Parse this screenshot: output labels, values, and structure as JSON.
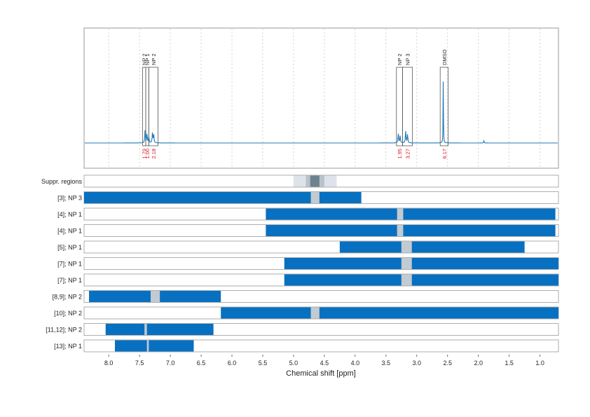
{
  "chart_data": {
    "type": "nmr-spectrum-with-suppression-regions",
    "xlabel": "Chemical shift [ppm]",
    "xlim": [
      8.4,
      0.7
    ],
    "x_ticks": [
      8.0,
      7.5,
      7.0,
      6.5,
      6.0,
      5.5,
      5.0,
      4.5,
      4.0,
      3.5,
      3.0,
      2.5,
      2.0,
      1.5,
      1.0
    ],
    "x_tick_labels": [
      "8.0",
      "7.5",
      "7.0",
      "6.5",
      "6.0",
      "5.5",
      "5.0",
      "4.5",
      "4.0",
      "3.5",
      "3.0",
      "2.5",
      "2.0",
      "1.5",
      "1.0"
    ],
    "spectrum": {
      "color": "#1f77b4",
      "baseline": 0.0,
      "peaks": [
        {
          "ppm": 7.41,
          "height": 0.16,
          "width": 0.012
        },
        {
          "ppm": 7.38,
          "height": 0.12,
          "width": 0.012
        },
        {
          "ppm": 7.35,
          "height": 0.08,
          "width": 0.012
        },
        {
          "ppm": 7.29,
          "height": 0.13,
          "width": 0.012
        },
        {
          "ppm": 7.27,
          "height": 0.11,
          "width": 0.012
        },
        {
          "ppm": 3.3,
          "height": 0.12,
          "width": 0.012
        },
        {
          "ppm": 3.27,
          "height": 0.09,
          "width": 0.012
        },
        {
          "ppm": 3.18,
          "height": 0.15,
          "width": 0.012
        },
        {
          "ppm": 3.15,
          "height": 0.11,
          "width": 0.012
        },
        {
          "ppm": 2.57,
          "height": 0.88,
          "width": 0.006
        },
        {
          "ppm": 1.91,
          "height": 0.03,
          "width": 0.008
        }
      ]
    },
    "integration_boxes": [
      {
        "label": "NP 2",
        "from": 7.45,
        "to": 7.4,
        "integral": "1.79"
      },
      {
        "label": "NP 1",
        "from": 7.4,
        "to": 7.35,
        "integral": "1.00"
      },
      {
        "label": "NP 2",
        "from": 7.35,
        "to": 7.2,
        "integral": "2.18"
      },
      {
        "label": "NP 2",
        "from": 3.33,
        "to": 3.23,
        "integral": "1.95"
      },
      {
        "label": "NP 3",
        "from": 3.23,
        "to": 3.07,
        "integral": "3.27"
      },
      {
        "label": "DMSO",
        "from": 2.62,
        "to": 2.49,
        "integral": "6.17"
      }
    ],
    "integral_color": "#e0141e",
    "suppression_regions": {
      "label": "Suppr. regions",
      "bands": [
        {
          "from": 5.0,
          "to": 4.3,
          "color": "#dde3e8"
        },
        {
          "from": 4.8,
          "to": 4.5,
          "color": "#b8c2cb"
        },
        {
          "from": 4.73,
          "to": 4.58,
          "color": "#6e8290"
        }
      ]
    },
    "rows": [
      {
        "label": "[3]; NP 3",
        "range": [
          8.4,
          3.9
        ],
        "gap": [
          4.72,
          4.58
        ]
      },
      {
        "label": "[4]; NP 1",
        "range": [
          5.45,
          0.75
        ],
        "gap": [
          3.32,
          3.22
        ]
      },
      {
        "label": "[4]; NP 1",
        "range": [
          5.45,
          0.75
        ],
        "gap": [
          3.32,
          3.22
        ]
      },
      {
        "label": "[5]; NP 1",
        "range": [
          4.25,
          1.25
        ],
        "gap": [
          3.25,
          3.08
        ]
      },
      {
        "label": "[7]; NP 1",
        "range": [
          5.15,
          0.7
        ],
        "gap": [
          3.25,
          3.08
        ]
      },
      {
        "label": "[7]; NP 1",
        "range": [
          5.15,
          0.7
        ],
        "gap": [
          3.25,
          3.08
        ]
      },
      {
        "label": "[8,9]; NP 2",
        "range": [
          8.32,
          6.18
        ],
        "gap": [
          7.32,
          7.17
        ]
      },
      {
        "label": "[10]; NP 2",
        "range": [
          6.18,
          0.7
        ],
        "gap": [
          4.72,
          4.58
        ]
      },
      {
        "label": "[11,12]; NP 2",
        "range": [
          8.05,
          6.3
        ],
        "gap": [
          7.42,
          7.38
        ]
      },
      {
        "label": "[13]; NP 1",
        "range": [
          7.9,
          6.62
        ],
        "gap": [
          7.38,
          7.35
        ]
      }
    ],
    "bar_color": "#0870c0",
    "gap_color": "#c2cad2",
    "grid": true
  }
}
